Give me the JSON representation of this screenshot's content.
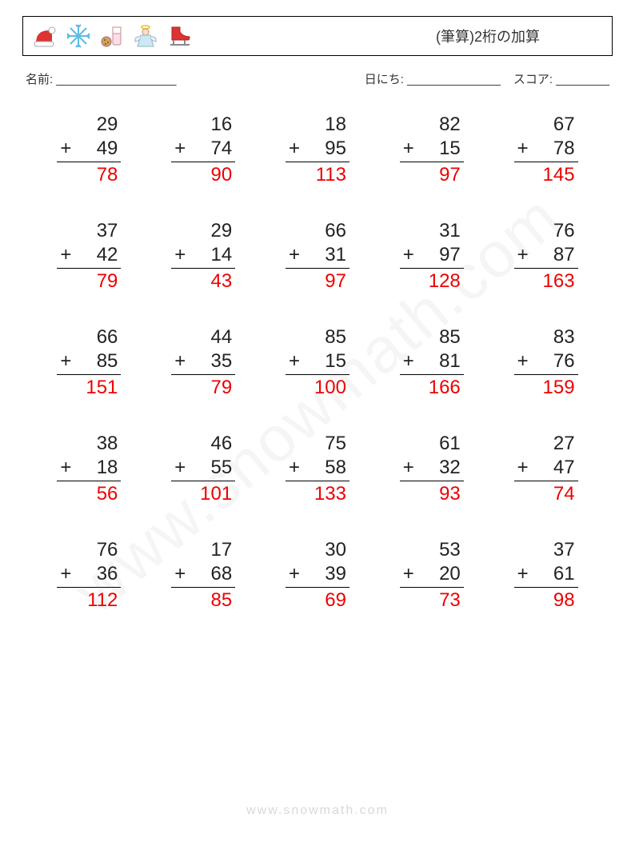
{
  "header": {
    "title": "(筆算)2桁の加算",
    "icons": [
      "santa-hat",
      "snowflake",
      "cookies-milk",
      "angel",
      "ice-skate"
    ]
  },
  "info": {
    "name_label": "名前:",
    "name_line": "__________________",
    "date_label": "日にち:",
    "date_line": "______________",
    "score_label": "スコア:",
    "score_line": "________"
  },
  "colors": {
    "text": "#222222",
    "answer": "#ee0000",
    "border": "#000000",
    "background": "#ffffff",
    "watermark": "rgba(120,120,120,0.07)",
    "footer": "rgba(100,100,100,0.25)"
  },
  "typography": {
    "problem_fontsize": 24,
    "title_fontsize": 18,
    "info_fontsize": 15
  },
  "operator": "+",
  "problems": [
    {
      "a": 29,
      "b": 49,
      "ans": 78
    },
    {
      "a": 16,
      "b": 74,
      "ans": 90
    },
    {
      "a": 18,
      "b": 95,
      "ans": 113
    },
    {
      "a": 82,
      "b": 15,
      "ans": 97
    },
    {
      "a": 67,
      "b": 78,
      "ans": 145
    },
    {
      "a": 37,
      "b": 42,
      "ans": 79
    },
    {
      "a": 29,
      "b": 14,
      "ans": 43
    },
    {
      "a": 66,
      "b": 31,
      "ans": 97
    },
    {
      "a": 31,
      "b": 97,
      "ans": 128
    },
    {
      "a": 76,
      "b": 87,
      "ans": 163
    },
    {
      "a": 66,
      "b": 85,
      "ans": 151
    },
    {
      "a": 44,
      "b": 35,
      "ans": 79
    },
    {
      "a": 85,
      "b": 15,
      "ans": 100
    },
    {
      "a": 85,
      "b": 81,
      "ans": 166
    },
    {
      "a": 83,
      "b": 76,
      "ans": 159
    },
    {
      "a": 38,
      "b": 18,
      "ans": 56
    },
    {
      "a": 46,
      "b": 55,
      "ans": 101
    },
    {
      "a": 75,
      "b": 58,
      "ans": 133
    },
    {
      "a": 61,
      "b": 32,
      "ans": 93
    },
    {
      "a": 27,
      "b": 47,
      "ans": 74
    },
    {
      "a": 76,
      "b": 36,
      "ans": 112
    },
    {
      "a": 17,
      "b": 68,
      "ans": 85
    },
    {
      "a": 30,
      "b": 39,
      "ans": 69
    },
    {
      "a": 53,
      "b": 20,
      "ans": 73
    },
    {
      "a": 37,
      "b": 61,
      "ans": 98
    }
  ],
  "watermark": "www.snowmath.com",
  "footer": "www.snowmath.com"
}
